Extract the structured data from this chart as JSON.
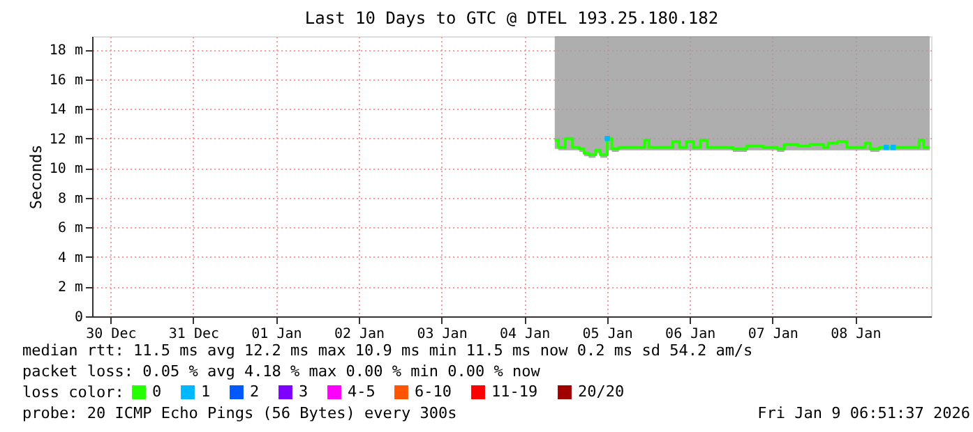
{
  "chart_data": {
    "type": "step",
    "title": "Last 10 Days to GTC @ DTEL 193.25.180.182",
    "ylabel": "Seconds",
    "xlim": [
      "2025-12-29T18:40",
      "2026-01-08T22:00"
    ],
    "xticks": [
      {
        "value": "2025-12-30",
        "label": "30 Dec"
      },
      {
        "value": "2025-12-31",
        "label": "31 Dec"
      },
      {
        "value": "2026-01-01",
        "label": "01 Jan"
      },
      {
        "value": "2026-01-02",
        "label": "02 Jan"
      },
      {
        "value": "2026-01-03",
        "label": "03 Jan"
      },
      {
        "value": "2026-01-04",
        "label": "04 Jan"
      },
      {
        "value": "2026-01-05",
        "label": "05 Jan"
      },
      {
        "value": "2026-01-06",
        "label": "06 Jan"
      },
      {
        "value": "2026-01-07",
        "label": "07 Jan"
      },
      {
        "value": "2026-01-08",
        "label": "08 Jan"
      }
    ],
    "ylim": [
      0,
      18.9
    ],
    "yticks": [
      0,
      {
        "value": 2,
        "label": "2 m"
      },
      {
        "value": 4,
        "label": "4 m"
      },
      {
        "value": 6,
        "label": "6 m"
      },
      {
        "value": 8,
        "label": "8 m"
      },
      {
        "value": 10,
        "label": "10 m"
      },
      {
        "value": 12,
        "label": "12 m"
      },
      {
        "value": 14,
        "label": "14 m"
      },
      {
        "value": 16,
        "label": "16 m"
      },
      {
        "value": 18,
        "label": "18 m"
      }
    ],
    "grid": true,
    "legend": "bottom",
    "legend_title": "loss color:",
    "series": [
      {
        "name": "0",
        "color": "#26ff00",
        "x": [
          "2026-01-04T08:50",
          "2026-01-04T09:55",
          "2026-01-04T11:55",
          "2026-01-04T14:00",
          "2026-01-04T16:00",
          "2026-01-04T17:20",
          "2026-01-04T18:40",
          "2026-01-04T20:40",
          "2026-01-04T22:05",
          "2026-01-05T00:05",
          "2026-01-05T01:25",
          "2026-01-05T03:25",
          "2026-01-05T07:30",
          "2026-01-05T10:55",
          "2026-01-05T12:10",
          "2026-01-05T15:35",
          "2026-01-05T19:00",
          "2026-01-05T21:00",
          "2026-01-05T23:00",
          "2026-01-06T01:05",
          "2026-01-06T03:05",
          "2026-01-06T05:05",
          "2026-01-06T09:05",
          "2026-01-06T12:30",
          "2026-01-06T16:35",
          "2026-01-06T21:20",
          "2026-01-07T01:20",
          "2026-01-07T03:25",
          "2026-01-07T07:25",
          "2026-01-07T10:50",
          "2026-01-07T14:50",
          "2026-01-07T16:10",
          "2026-01-07T18:55",
          "2026-01-07T21:35",
          "2026-01-08T02:55",
          "2026-01-08T04:20",
          "2026-01-08T07:00",
          "2026-01-08T09:00",
          "2026-01-08T11:00",
          "2026-01-08T13:50",
          "2026-01-08T15:50",
          "2026-01-08T18:30",
          "2026-01-08T19:50",
          "2026-01-08T21:35"
        ],
        "values": [
          11.9,
          11.4,
          12.0,
          11.4,
          11.3,
          11.0,
          10.9,
          11.2,
          10.9,
          12.0,
          11.3,
          11.4,
          11.4,
          11.9,
          11.4,
          11.4,
          11.8,
          11.4,
          11.8,
          11.4,
          11.9,
          11.4,
          11.4,
          11.3,
          11.5,
          11.4,
          11.3,
          11.6,
          11.5,
          11.6,
          11.4,
          11.7,
          11.8,
          11.4,
          11.7,
          11.3,
          11.4,
          11.4,
          11.4,
          11.4,
          11.4,
          11.9,
          11.4,
          11.4
        ],
        "lower": [
          11.3,
          11.2,
          11.2,
          11.2,
          11.1,
          10.8,
          10.7,
          11.0,
          10.7,
          11.2,
          11.1,
          11.2,
          11.2,
          11.2,
          11.2,
          11.2,
          11.2,
          11.2,
          11.2,
          11.2,
          11.2,
          11.2,
          11.2,
          11.1,
          11.2,
          11.2,
          11.1,
          11.2,
          11.2,
          11.2,
          11.2,
          11.2,
          11.2,
          11.2,
          11.2,
          11.1,
          11.2,
          11.2,
          11.2,
          11.2,
          11.2,
          11.2,
          11.2,
          11.2
        ],
        "upper": [
          18.9,
          18.9,
          18.9,
          18.9,
          18.9,
          18.9,
          18.9,
          18.9,
          18.9,
          18.9,
          18.9,
          18.9,
          18.9,
          18.9,
          18.9,
          18.9,
          18.9,
          18.9,
          18.9,
          18.9,
          18.9,
          18.9,
          18.9,
          18.9,
          18.9,
          18.9,
          18.9,
          18.9,
          18.9,
          18.9,
          18.9,
          18.9,
          18.9,
          18.9,
          18.9,
          18.9,
          18.9,
          18.9,
          18.9,
          18.9,
          18.9,
          18.9,
          18.9,
          18.9
        ]
      },
      {
        "name": "1",
        "color": "#00b8ff",
        "type": "scatter",
        "x": [
          "2026-01-05T00:05",
          "2026-01-08T09:00",
          "2026-01-08T11:00"
        ],
        "values": [
          12.0,
          11.4,
          11.4
        ]
      },
      {
        "name": "2",
        "color": "#0059ff",
        "type": "scatter"
      },
      {
        "name": "3",
        "color": "#7e00ff",
        "type": "scatter"
      },
      {
        "name": "4-5",
        "color": "#ff00ff",
        "type": "scatter"
      },
      {
        "name": "6-10",
        "color": "#ff5500",
        "type": "scatter"
      },
      {
        "name": "11-19",
        "color": "#ff0000",
        "type": "scatter"
      },
      {
        "name": "20/20",
        "color": "#a10000",
        "type": "scatter"
      }
    ],
    "annotations": [
      "median rtt:  11.5 ms avg  12.2 ms max  10.9 ms min  11.5 ms now  0.2 ms sd  54.2   am/s",
      "packet loss: 0.05 % avg  4.18 % max  0.00 % min  0.00 % now",
      "probe:       20 ICMP Echo Pings (56 Bytes) every 300s",
      "Fri Jan  9 06:51:37 2026"
    ]
  }
}
